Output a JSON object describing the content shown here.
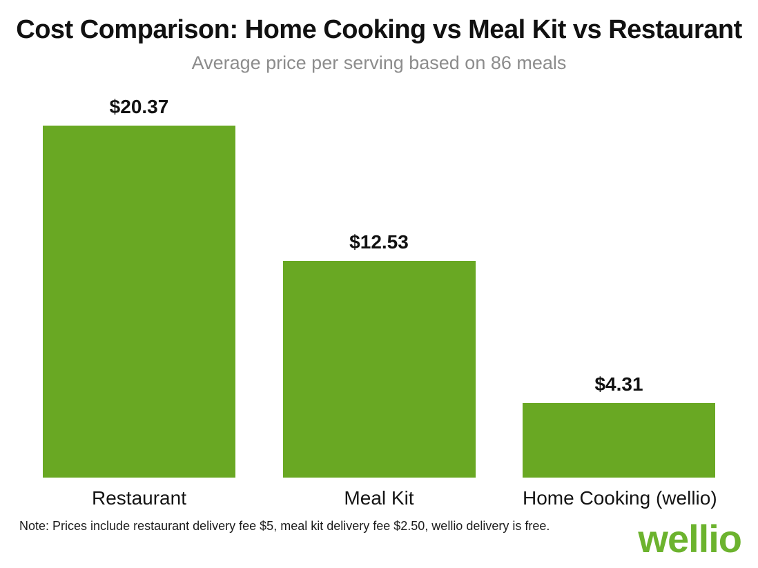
{
  "title": "Cost Comparison: Home Cooking vs Meal Kit vs Restaurant",
  "subtitle": "Average price per serving based on 86 meals",
  "footnote": "Note: Prices include restaurant delivery fee $5, meal kit delivery fee $2.50, wellio delivery is free.",
  "logo_text": "wellio",
  "colors": {
    "bar": "#69a823",
    "logo": "#6cb32e",
    "title": "#111111",
    "subtitle": "#8c8c8c"
  },
  "chart_data": {
    "type": "bar",
    "title": "Cost Comparison: Home Cooking vs Meal Kit vs Restaurant",
    "subtitle": "Average price per serving based on 86 meals",
    "categories": [
      "Restaurant",
      "Meal Kit",
      "Home Cooking (wellio)"
    ],
    "values": [
      20.37,
      12.53,
      4.31
    ],
    "value_labels": [
      "$20.37",
      "$12.53",
      "$4.31"
    ],
    "xlabel": "",
    "ylabel": "",
    "ylim": [
      0,
      20.37
    ],
    "grid": false,
    "legend": false,
    "bar_color": "#69a823",
    "annotations": [
      "Note: Prices include restaurant delivery fee $5, meal kit delivery fee $2.50, wellio delivery is free."
    ]
  }
}
